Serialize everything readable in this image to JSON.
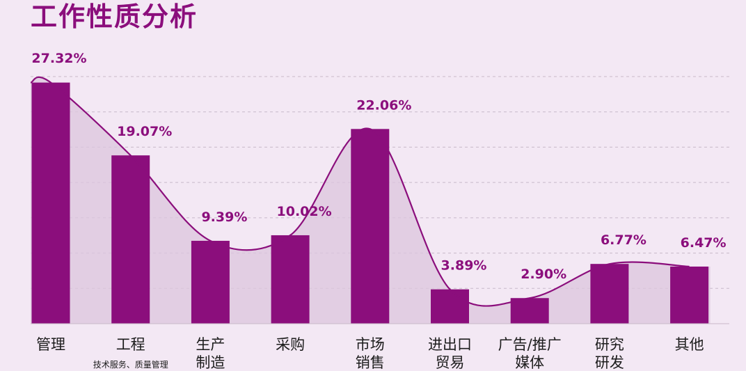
{
  "chart_data": {
    "type": "bar",
    "title": "工作性质分析",
    "categories": [
      "管理",
      "工程",
      "生产制造",
      "采购",
      "市场销售",
      "进出口贸易",
      "广告/推广媒体",
      "研究研发",
      "其他"
    ],
    "category_lines": [
      [
        "管理"
      ],
      [
        "工程"
      ],
      [
        "生产",
        "制造"
      ],
      [
        "采购"
      ],
      [
        "市场",
        "销售"
      ],
      [
        "进出口",
        "贸易"
      ],
      [
        "广告/推广",
        "媒体"
      ],
      [
        "研究",
        "研发"
      ],
      [
        "其他"
      ]
    ],
    "category_notes": [
      "",
      "技术服务、质量管理",
      "",
      "",
      "",
      "",
      "",
      "",
      ""
    ],
    "values": [
      27.32,
      19.07,
      9.39,
      10.02,
      22.06,
      3.89,
      2.9,
      6.77,
      6.47
    ],
    "value_labels": [
      "27.32%",
      "19.07%",
      "9.39%",
      "10.02%",
      "22.06%",
      "3.89%",
      "2.90%",
      "6.77%",
      "6.47%"
    ],
    "ylim": [
      0,
      28
    ],
    "grid": true,
    "overlay": "smooth-curve",
    "colors": {
      "bar": "#8b0e7c",
      "curve": "#8b0e7c",
      "area": "#dcc5de",
      "grid": "#c8b9c9",
      "label": "#8b0e7c",
      "axis_text": "#1c1c1c"
    }
  }
}
